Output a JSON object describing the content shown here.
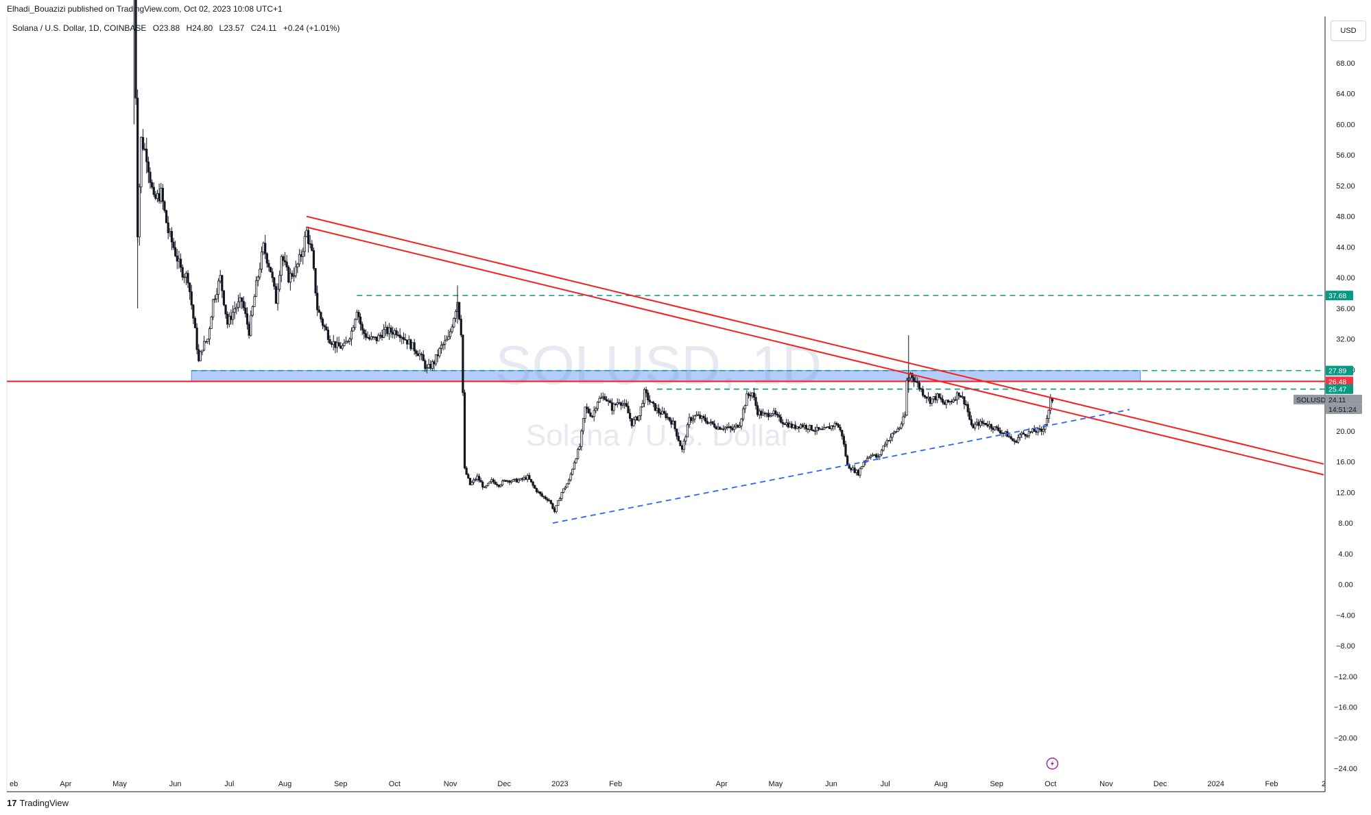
{
  "header": {
    "publish_line": "Elhadi_Bouazizi published on TradingView.com, Oct 02, 2023 10:08 UTC+1",
    "currency": "USD"
  },
  "legend": {
    "symbol_desc": "Solana / U.S. Dollar, 1D, COINBASE",
    "open_label": "O",
    "open": "23.88",
    "high_label": "H",
    "high": "24.80",
    "low_label": "L",
    "low": "23.57",
    "close_label": "C",
    "close": "24.11",
    "change": "+0.24 (+1.01%)"
  },
  "watermark": {
    "symbol": "SOLUSD, 1D",
    "name": "Solana / U.S. Dollar"
  },
  "footer": {
    "brand": "TradingView"
  },
  "colors": {
    "candle": "#131722",
    "resistance_line": "#ff1a1a",
    "support_line": "#2962ff",
    "level_line": "#089981",
    "zone_fill": "#5b8def",
    "price_tag_bg": "#9598a1",
    "red_tag_bg": "#f23645",
    "green_tag_bg": "#089981"
  },
  "chart_data": {
    "type": "candlestick",
    "symbol": "SOLUSD",
    "interval": "1D",
    "y_axis": {
      "ticks": [
        "68.00",
        "64.00",
        "60.00",
        "56.00",
        "52.00",
        "48.00",
        "44.00",
        "40.00",
        "36.00",
        "32.00",
        "28.00",
        "24.00",
        "20.00",
        "16.00",
        "12.00",
        "8.00",
        "4.00",
        "0.00",
        "−4.00",
        "−8.00",
        "−12.00",
        "−16.00",
        "−20.00",
        "−24.00"
      ],
      "range": [
        -25.2,
        73.6
      ]
    },
    "x_axis": {
      "ticks": [
        {
          "label": "eb",
          "date": "2022-02-28"
        },
        {
          "label": "Apr",
          "date": "2022-04-01"
        },
        {
          "label": "May",
          "date": "2022-05-01"
        },
        {
          "label": "Jun",
          "date": "2022-06-01"
        },
        {
          "label": "Jul",
          "date": "2022-07-01"
        },
        {
          "label": "Aug",
          "date": "2022-08-01"
        },
        {
          "label": "Sep",
          "date": "2022-09-01"
        },
        {
          "label": "Oct",
          "date": "2022-10-01"
        },
        {
          "label": "Nov",
          "date": "2022-11-01"
        },
        {
          "label": "Dec",
          "date": "2022-12-01"
        },
        {
          "label": "2023",
          "date": "2023-01-01"
        },
        {
          "label": "Feb",
          "date": "2023-02-01"
        },
        {
          "label": "Apr",
          "date": "2023-04-01"
        },
        {
          "label": "May",
          "date": "2023-05-01"
        },
        {
          "label": "Jun",
          "date": "2023-06-01"
        },
        {
          "label": "Jul",
          "date": "2023-07-01"
        },
        {
          "label": "Aug",
          "date": "2023-08-01"
        },
        {
          "label": "Sep",
          "date": "2023-09-01"
        },
        {
          "label": "Oct",
          "date": "2023-10-01"
        },
        {
          "label": "Nov",
          "date": "2023-11-01"
        },
        {
          "label": "Dec",
          "date": "2023-12-01"
        },
        {
          "label": "2024",
          "date": "2024-01-01"
        },
        {
          "label": "Feb",
          "date": "2024-02-01"
        },
        {
          "label": "2",
          "date": "2024-03-01"
        }
      ]
    },
    "price_series": [
      [
        "2022-05-09",
        86.0
      ],
      [
        "2022-05-10",
        64.0
      ],
      [
        "2022-05-11",
        46.0
      ],
      [
        "2022-05-12",
        52.0
      ],
      [
        "2022-05-13",
        58.0
      ],
      [
        "2022-05-16",
        56.0
      ],
      [
        "2022-05-20",
        50.0
      ],
      [
        "2022-05-24",
        51.0
      ],
      [
        "2022-05-28",
        46.0
      ],
      [
        "2022-05-31",
        44.0
      ],
      [
        "2022-06-04",
        41.0
      ],
      [
        "2022-06-08",
        40.0
      ],
      [
        "2022-06-12",
        33.0
      ],
      [
        "2022-06-14",
        29.0
      ],
      [
        "2022-06-16",
        31.0
      ],
      [
        "2022-06-19",
        32.0
      ],
      [
        "2022-06-22",
        37.0
      ],
      [
        "2022-06-26",
        40.0
      ],
      [
        "2022-06-30",
        34.0
      ],
      [
        "2022-07-04",
        36.0
      ],
      [
        "2022-07-08",
        37.0
      ],
      [
        "2022-07-12",
        33.0
      ],
      [
        "2022-07-16",
        39.0
      ],
      [
        "2022-07-20",
        44.0
      ],
      [
        "2022-07-24",
        41.0
      ],
      [
        "2022-07-27",
        37.0
      ],
      [
        "2022-07-30",
        43.0
      ],
      [
        "2022-08-03",
        40.0
      ],
      [
        "2022-08-07",
        41.0
      ],
      [
        "2022-08-10",
        43.0
      ],
      [
        "2022-08-13",
        46.0
      ],
      [
        "2022-08-16",
        43.0
      ],
      [
        "2022-08-19",
        36.0
      ],
      [
        "2022-08-22",
        34.0
      ],
      [
        "2022-08-26",
        32.0
      ],
      [
        "2022-08-30",
        31.0
      ],
      [
        "2022-09-03",
        31.0
      ],
      [
        "2022-09-07",
        33.0
      ],
      [
        "2022-09-10",
        36.0
      ],
      [
        "2022-09-13",
        33.0
      ],
      [
        "2022-09-17",
        32.0
      ],
      [
        "2022-09-21",
        32.0
      ],
      [
        "2022-09-25",
        33.0
      ],
      [
        "2022-09-29",
        33.0
      ],
      [
        "2022-10-03",
        33.0
      ],
      [
        "2022-10-07",
        32.0
      ],
      [
        "2022-10-11",
        31.0
      ],
      [
        "2022-10-15",
        30.0
      ],
      [
        "2022-10-19",
        28.0
      ],
      [
        "2022-10-23",
        29.0
      ],
      [
        "2022-10-27",
        31.0
      ],
      [
        "2022-10-31",
        32.0
      ],
      [
        "2022-11-05",
        37.0
      ],
      [
        "2022-11-07",
        33.0
      ],
      [
        "2022-11-08",
        25.0
      ],
      [
        "2022-11-09",
        15.0
      ],
      [
        "2022-11-12",
        13.0
      ],
      [
        "2022-11-16",
        14.0
      ],
      [
        "2022-11-20",
        12.5
      ],
      [
        "2022-11-24",
        13.5
      ],
      [
        "2022-11-28",
        13.0
      ],
      [
        "2022-12-02",
        13.6
      ],
      [
        "2022-12-06",
        13.5
      ],
      [
        "2022-12-10",
        13.6
      ],
      [
        "2022-12-14",
        14.0
      ],
      [
        "2022-12-18",
        12.5
      ],
      [
        "2022-12-22",
        11.5
      ],
      [
        "2022-12-26",
        11.0
      ],
      [
        "2022-12-29",
        9.5
      ],
      [
        "2023-01-02",
        12.0
      ],
      [
        "2023-01-06",
        13.5
      ],
      [
        "2023-01-09",
        16.0
      ],
      [
        "2023-01-12",
        18.0
      ],
      [
        "2023-01-15",
        23.0
      ],
      [
        "2023-01-19",
        22.0
      ],
      [
        "2023-01-22",
        24.0
      ],
      [
        "2023-01-26",
        24.5
      ],
      [
        "2023-01-30",
        23.0
      ],
      [
        "2023-02-03",
        24.0
      ],
      [
        "2023-02-07",
        23.0
      ],
      [
        "2023-02-10",
        21.0
      ],
      [
        "2023-02-14",
        22.0
      ],
      [
        "2023-02-17",
        25.0
      ],
      [
        "2023-02-21",
        23.5
      ],
      [
        "2023-02-25",
        22.5
      ],
      [
        "2023-03-01",
        22.0
      ],
      [
        "2023-03-05",
        21.0
      ],
      [
        "2023-03-10",
        17.5
      ],
      [
        "2023-03-14",
        21.5
      ],
      [
        "2023-03-18",
        22.0
      ],
      [
        "2023-03-22",
        21.5
      ],
      [
        "2023-03-26",
        21.0
      ],
      [
        "2023-03-30",
        20.5
      ],
      [
        "2023-04-03",
        20.5
      ],
      [
        "2023-04-07",
        20.2
      ],
      [
        "2023-04-11",
        21.0
      ],
      [
        "2023-04-15",
        24.5
      ],
      [
        "2023-04-18",
        25.0
      ],
      [
        "2023-04-21",
        22.5
      ],
      [
        "2023-04-25",
        22.0
      ],
      [
        "2023-04-29",
        22.5
      ],
      [
        "2023-05-03",
        21.5
      ],
      [
        "2023-05-07",
        21.0
      ],
      [
        "2023-05-11",
        20.5
      ],
      [
        "2023-05-15",
        20.8
      ],
      [
        "2023-05-19",
        20.5
      ],
      [
        "2023-05-23",
        20.2
      ],
      [
        "2023-05-27",
        20.0
      ],
      [
        "2023-05-31",
        20.5
      ],
      [
        "2023-06-04",
        21.0
      ],
      [
        "2023-06-07",
        19.5
      ],
      [
        "2023-06-10",
        15.5
      ],
      [
        "2023-06-13",
        15.0
      ],
      [
        "2023-06-16",
        14.5
      ],
      [
        "2023-06-19",
        16.0
      ],
      [
        "2023-06-23",
        17.0
      ],
      [
        "2023-06-27",
        16.5
      ],
      [
        "2023-07-01",
        18.5
      ],
      [
        "2023-07-05",
        19.5
      ],
      [
        "2023-07-09",
        20.5
      ],
      [
        "2023-07-12",
        22.0
      ],
      [
        "2023-07-13",
        26.5
      ],
      [
        "2023-07-15",
        27.5
      ],
      [
        "2023-07-18",
        26.5
      ],
      [
        "2023-07-22",
        25.0
      ],
      [
        "2023-07-26",
        24.0
      ],
      [
        "2023-07-30",
        24.5
      ],
      [
        "2023-08-03",
        23.5
      ],
      [
        "2023-08-07",
        24.0
      ],
      [
        "2023-08-11",
        25.0
      ],
      [
        "2023-08-15",
        23.5
      ],
      [
        "2023-08-18",
        20.5
      ],
      [
        "2023-08-22",
        21.0
      ],
      [
        "2023-08-26",
        21.0
      ],
      [
        "2023-08-30",
        20.5
      ],
      [
        "2023-09-03",
        20.0
      ],
      [
        "2023-09-07",
        19.5
      ],
      [
        "2023-09-11",
        18.5
      ],
      [
        "2023-09-14",
        19.5
      ],
      [
        "2023-09-18",
        19.7
      ],
      [
        "2023-09-22",
        20.0
      ],
      [
        "2023-09-26",
        20.0
      ],
      [
        "2023-09-28",
        21.0
      ],
      [
        "2023-09-30",
        22.5
      ],
      [
        "2023-10-01",
        23.9
      ],
      [
        "2023-10-02",
        24.11
      ]
    ],
    "annotations": {
      "resistance_upper": {
        "from": [
          "2022-08-13",
          48.0
        ],
        "to": [
          "2024-03-01",
          15.7
        ]
      },
      "resistance_lower": {
        "from": [
          "2022-08-13",
          46.6
        ],
        "to": [
          "2024-03-01",
          14.3
        ]
      },
      "support_trend": {
        "from": [
          "2022-12-28",
          8.0
        ],
        "to": [
          "2023-11-14",
          22.8
        ]
      },
      "support_trend_dashed": {
        "from": [
          "2023-11-14",
          22.8
        ],
        "to": [
          "2024-01-23",
          22.9
        ]
      },
      "red_horizontal": {
        "price": 26.48
      },
      "level_37_68": {
        "price": 37.68,
        "from": "2022-09-10"
      },
      "level_27_89": {
        "price": 27.89,
        "from": "2022-06-10"
      },
      "level_25_47": {
        "price": 25.47,
        "from": "2023-02-24"
      },
      "zone": {
        "from": "2022-06-10",
        "to": "2023-11-20",
        "top": 27.89,
        "bottom": 26.48
      }
    },
    "price_labels": [
      {
        "text": "37.68",
        "price": 37.68,
        "kind": "green"
      },
      {
        "text": "27.89",
        "price": 27.89,
        "kind": "green"
      },
      {
        "text": "26.48",
        "price": 26.48,
        "kind": "red"
      },
      {
        "text": "25.47",
        "price": 25.47,
        "kind": "green"
      },
      {
        "text": "SOLUSD",
        "price": 24.11,
        "kind": "symbol"
      },
      {
        "text": "24.11",
        "price": 24.11,
        "kind": "current"
      },
      {
        "text": "14:51:24",
        "price": 24.11,
        "kind": "countdown"
      }
    ]
  }
}
